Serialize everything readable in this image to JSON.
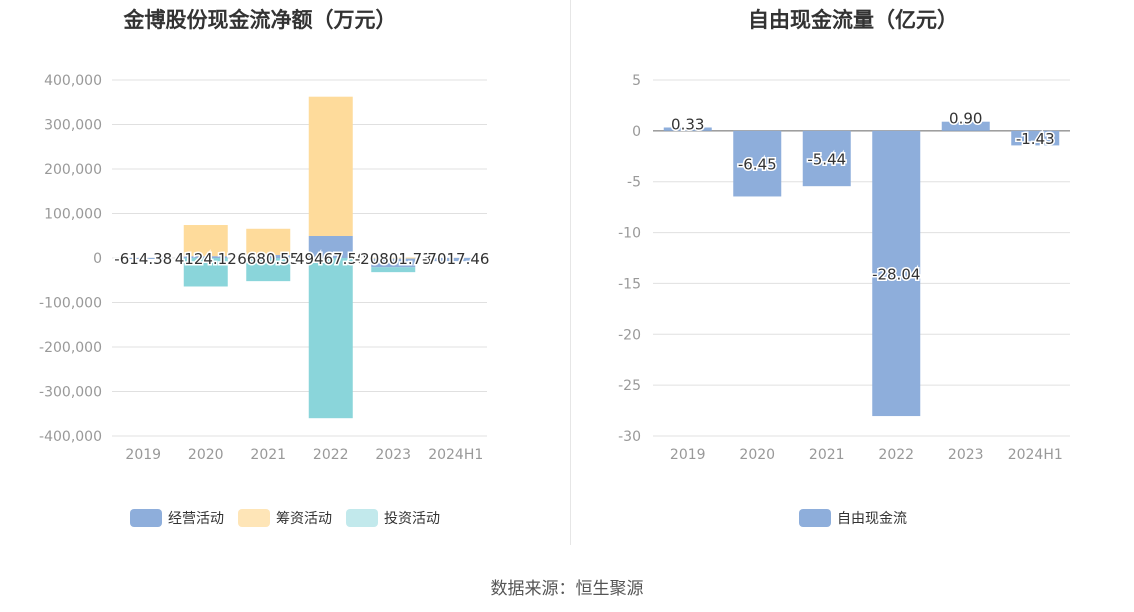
{
  "source": "数据来源：恒生聚源",
  "chart_data": [
    {
      "type": "bar",
      "stacked": true,
      "title": "金博股份现金流净额（万元）",
      "categories": [
        "2019",
        "2020",
        "2021",
        "2022",
        "2023",
        "2024H1"
      ],
      "ylim": [
        -400000,
        400000
      ],
      "yticks": [
        400000,
        300000,
        200000,
        100000,
        0,
        -100000,
        -200000,
        -300000,
        -400000
      ],
      "ytick_labels": [
        "400,000",
        "300,000",
        "200,000",
        "100,000",
        "0",
        "-100,000",
        "-200,000",
        "-300,000",
        "-400,000"
      ],
      "grid": true,
      "legend_position": "bottom",
      "series": [
        {
          "name": "经营活动",
          "color": "#8eaedb",
          "values": [
            -614.38,
            4124.12,
            6680.55,
            49467.5,
            -20801.73,
            -7017.46
          ],
          "labels": [
            "-614.38",
            "4124.12",
            "6680.55",
            "49467.50",
            "-20801.73",
            "-7017.46"
          ]
        },
        {
          "name": "筹资活动",
          "color": "#fedb9b",
          "values": [
            0,
            70000,
            59000,
            313000,
            1000,
            0
          ]
        },
        {
          "name": "投资活动",
          "color": "#8ad5da",
          "values": [
            0,
            -64000,
            -52000,
            -360000,
            -11000,
            0
          ]
        }
      ]
    },
    {
      "type": "bar",
      "title": "自由现金流量（亿元）",
      "categories": [
        "2019",
        "2020",
        "2021",
        "2022",
        "2023",
        "2024H1"
      ],
      "ylim": [
        -30,
        5
      ],
      "yticks": [
        5,
        0,
        -5,
        -10,
        -15,
        -20,
        -25,
        -30
      ],
      "ytick_labels": [
        "5",
        "0",
        "-5",
        "-10",
        "-15",
        "-20",
        "-25",
        "-30"
      ],
      "grid": true,
      "legend_position": "bottom",
      "series": [
        {
          "name": "自由现金流",
          "color": "#8eaedb",
          "values": [
            0.33,
            -6.45,
            -5.44,
            -28.04,
            0.9,
            -1.43
          ],
          "labels": [
            "0.33",
            "-6.45",
            "-5.44",
            "-28.04",
            "0.90",
            "-1.43"
          ]
        }
      ]
    }
  ]
}
